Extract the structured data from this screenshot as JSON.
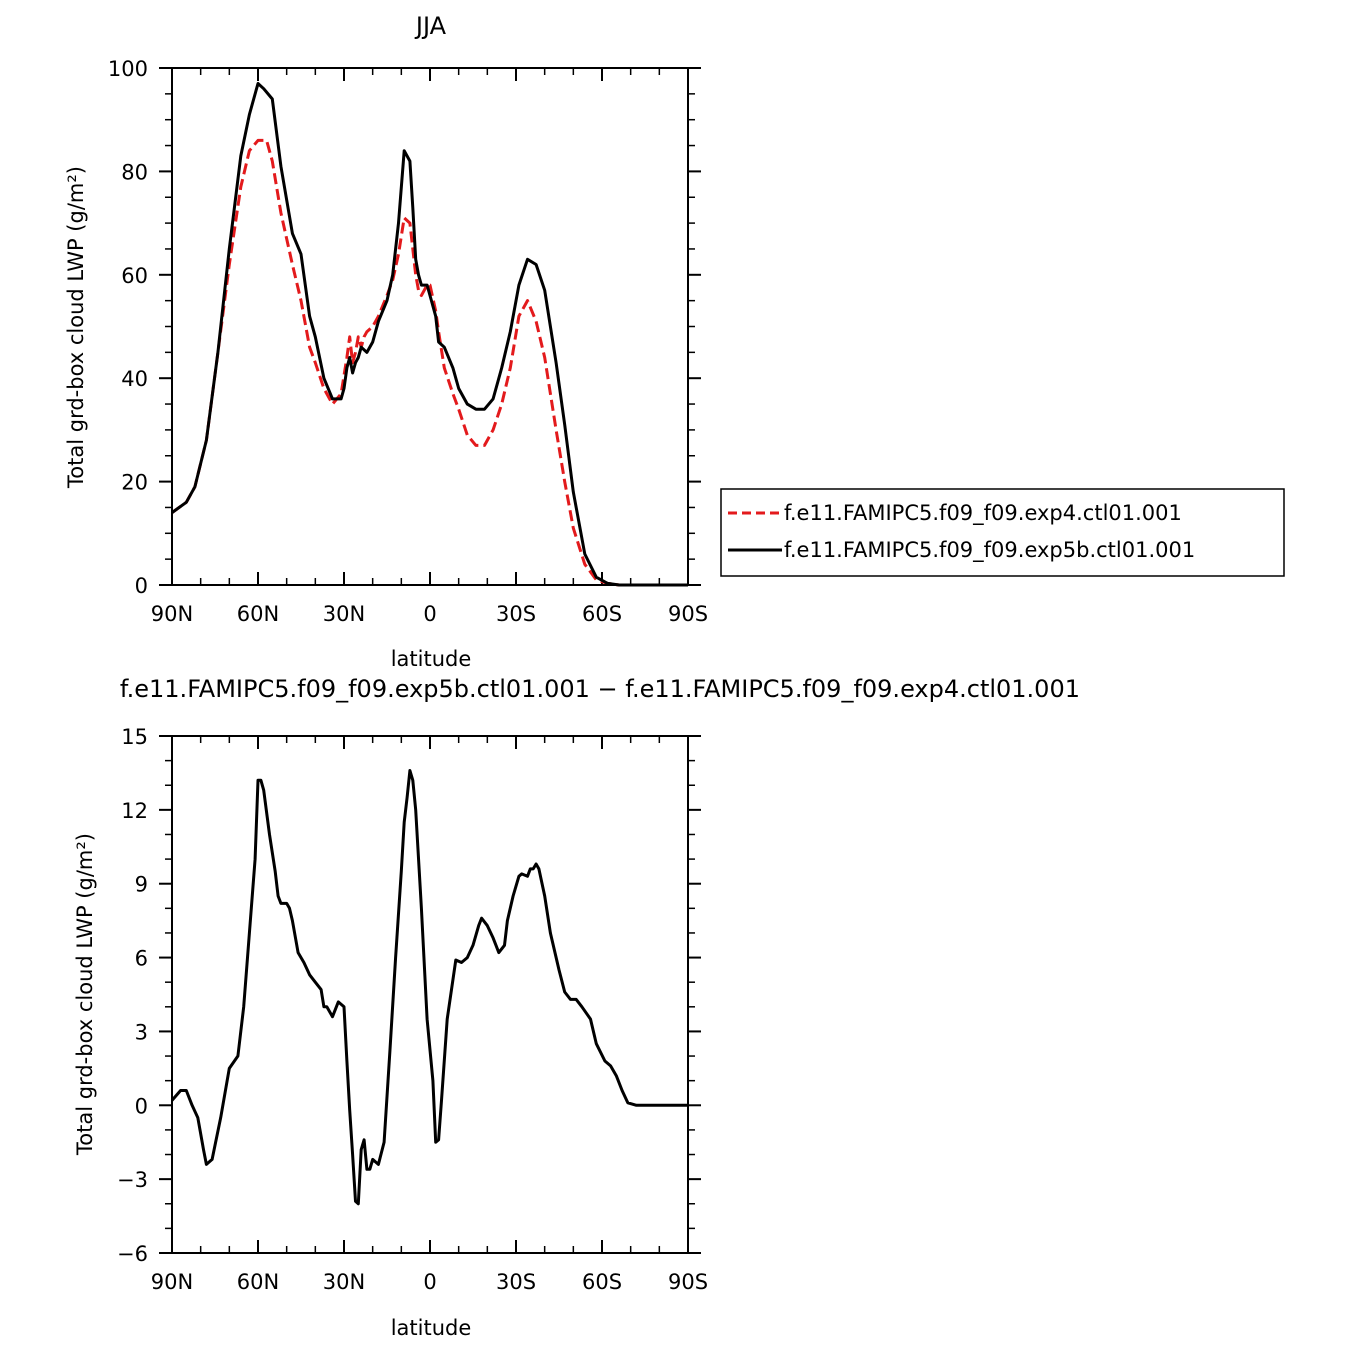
{
  "chart_data": [
    {
      "type": "line",
      "title": "JJA",
      "xlabel": "latitude",
      "ylabel": "Total grd-box cloud LWP (g/m²)",
      "xlim": [
        90,
        -90
      ],
      "ylim": [
        0,
        100
      ],
      "x_ticks": [
        90,
        60,
        30,
        0,
        -30,
        -60,
        -90
      ],
      "x_tick_labels": [
        "90N",
        "60N",
        "30N",
        "0",
        "30S",
        "60S",
        "90S"
      ],
      "y_ticks": [
        0,
        20,
        40,
        60,
        80,
        100
      ],
      "y_tick_labels": [
        "0",
        "20",
        "40",
        "60",
        "80",
        "100"
      ],
      "legend_placement": "outside-right",
      "series": [
        {
          "name": "f.e11.FAMIPC5.f09_f09.exp4.ctl01.001",
          "color": "#e31a1c",
          "dash": "dashed",
          "x": [
            90,
            85,
            82,
            78,
            74,
            70,
            66,
            63,
            60,
            57,
            55,
            52,
            48,
            45,
            42,
            40,
            37,
            34,
            31,
            29,
            28,
            27,
            26,
            25,
            24,
            23,
            22,
            20,
            18,
            15,
            13,
            11,
            9,
            7,
            6,
            5,
            4,
            3,
            1,
            0,
            -2,
            -3,
            -5,
            -8,
            -10,
            -13,
            -16,
            -19,
            -22,
            -25,
            -28,
            -31,
            -34,
            -37,
            -40,
            -42,
            -44,
            -47,
            -50,
            -54,
            -58,
            -62,
            -66,
            -69,
            -72,
            -75,
            -80,
            -85,
            -90
          ],
          "y": [
            14,
            16,
            19,
            28,
            45,
            62,
            77,
            84,
            86,
            86,
            82,
            72,
            62,
            55,
            46,
            43,
            38,
            35,
            37,
            44,
            48,
            43,
            45,
            48,
            46,
            48,
            49,
            50,
            52,
            56,
            59,
            64,
            71,
            70,
            65,
            60,
            57,
            56,
            58,
            58,
            53,
            49,
            42,
            37,
            34,
            29,
            27,
            27,
            30,
            35,
            42,
            52,
            55,
            51,
            44,
            37,
            30,
            20,
            11,
            4,
            1,
            0.3,
            0,
            0,
            0,
            0,
            0,
            0,
            0
          ]
        },
        {
          "name": "f.e11.FAMIPC5.f09_f09.exp5b.ctl01.001",
          "color": "#000000",
          "dash": "solid",
          "x": [
            90,
            85,
            82,
            78,
            74,
            70,
            66,
            63,
            60,
            58,
            55,
            52,
            48,
            45,
            42,
            40,
            37,
            34,
            31,
            30,
            29,
            28,
            27,
            26,
            25,
            24,
            22,
            20,
            18,
            15,
            13,
            11,
            9,
            7,
            6,
            5,
            4,
            3,
            1,
            0,
            -2,
            -3,
            -5,
            -8,
            -10,
            -13,
            -16,
            -19,
            -22,
            -25,
            -28,
            -31,
            -34,
            -37,
            -40,
            -42,
            -44,
            -47,
            -50,
            -54,
            -58,
            -62,
            -66,
            -69,
            -72,
            -75,
            -80,
            -85,
            -90
          ],
          "y": [
            14,
            16,
            19,
            28,
            45,
            65,
            83,
            91,
            97,
            96,
            94,
            81,
            68,
            64,
            52,
            48,
            40,
            36,
            36,
            38,
            42,
            44,
            41,
            43,
            44,
            46,
            45,
            47,
            51,
            55,
            60,
            70,
            84,
            82,
            73,
            63,
            60,
            58,
            58,
            56,
            52,
            47,
            46,
            42,
            38,
            35,
            34,
            34,
            36,
            42,
            49,
            58,
            63,
            62,
            57,
            50,
            43,
            31,
            18,
            6,
            1.5,
            0.3,
            0,
            0,
            0,
            0,
            0,
            0,
            0
          ]
        }
      ]
    },
    {
      "type": "line",
      "title": "f.e11.FAMIPC5.f09_f09.exp5b.ctl01.001 − f.e11.FAMIPC5.f09_f09.exp4.ctl01.001",
      "xlabel": "latitude",
      "ylabel": "Total grd-box cloud LWP (g/m²)",
      "xlim": [
        90,
        -90
      ],
      "ylim": [
        -6,
        15
      ],
      "x_ticks": [
        90,
        60,
        30,
        0,
        -30,
        -60,
        -90
      ],
      "x_tick_labels": [
        "90N",
        "60N",
        "30N",
        "0",
        "30S",
        "60S",
        "90S"
      ],
      "y_ticks": [
        -6,
        -3,
        0,
        3,
        6,
        9,
        12,
        15
      ],
      "y_tick_labels": [
        "−6",
        "−3",
        "0",
        "3",
        "6",
        "9",
        "12",
        "15"
      ],
      "series": [
        {
          "color": "#000000",
          "x": [
            90,
            87,
            85,
            83,
            81,
            79,
            78,
            76,
            73,
            70,
            67,
            65,
            63,
            61,
            60,
            59,
            58,
            56,
            54,
            53,
            52,
            50,
            49,
            48,
            46,
            44,
            42,
            40,
            38,
            37,
            36,
            34,
            32,
            30,
            29,
            28,
            27,
            26,
            25,
            24,
            23,
            22,
            21,
            20,
            19,
            18,
            16,
            14,
            12,
            10,
            9,
            8,
            7,
            6,
            5,
            3,
            1,
            -1,
            -2,
            -3,
            -4,
            -6,
            -9,
            -11,
            -13,
            -15,
            -17,
            -18,
            -20,
            -22,
            -24,
            -26,
            -27,
            -29,
            -31,
            -32,
            -34,
            -35,
            -36,
            -37,
            -38,
            -40,
            -42,
            -45,
            -47,
            -49,
            -51,
            -53,
            -56,
            -58,
            -61,
            -63,
            -65,
            -67,
            -69,
            -72,
            -76,
            -80,
            -85,
            -90
          ],
          "y": [
            0.2,
            0.6,
            0.6,
            0,
            -0.5,
            -1.8,
            -2.4,
            -2.2,
            -0.5,
            1.5,
            2.0,
            4.0,
            7.0,
            10.0,
            13.2,
            13.2,
            12.8,
            11.0,
            9.5,
            8.5,
            8.2,
            8.2,
            8.0,
            7.5,
            6.2,
            5.8,
            5.3,
            5.0,
            4.7,
            4.0,
            4.0,
            3.6,
            4.2,
            4.0,
            1.8,
            -0.2,
            -2.0,
            -3.9,
            -4.0,
            -1.8,
            -1.4,
            -2.6,
            -2.6,
            -2.2,
            -2.3,
            -2.4,
            -1.5,
            2.2,
            6.0,
            9.5,
            11.5,
            12.5,
            13.6,
            13.2,
            12.0,
            8.0,
            3.5,
            1.0,
            -1.5,
            -1.4,
            0.2,
            3.5,
            5.9,
            5.8,
            6.0,
            6.5,
            7.3,
            7.6,
            7.3,
            6.8,
            6.2,
            6.5,
            7.5,
            8.5,
            9.3,
            9.4,
            9.3,
            9.6,
            9.6,
            9.8,
            9.6,
            8.5,
            7.0,
            5.5,
            4.6,
            4.3,
            4.3,
            4.0,
            3.5,
            2.5,
            1.8,
            1.6,
            1.2,
            0.6,
            0.1,
            0,
            0,
            0,
            0,
            0
          ]
        }
      ]
    }
  ]
}
